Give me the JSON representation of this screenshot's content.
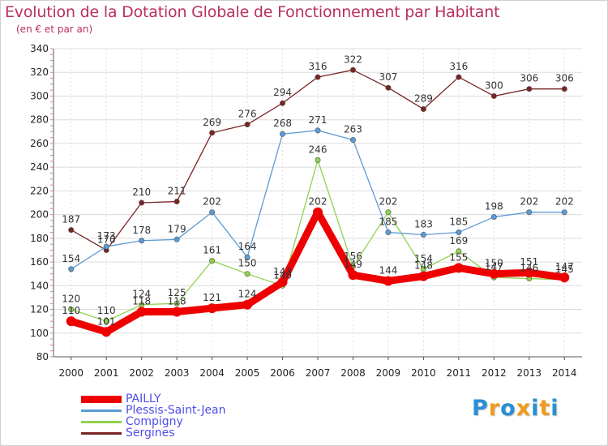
{
  "chart_data": {
    "type": "line",
    "title": "Evolution de la Dotation Globale de Fonctionnement par Habitant",
    "subtitle": "(en € et par an)",
    "xlabel": "",
    "ylabel": "",
    "categories": [
      "2000",
      "2001",
      "2002",
      "2003",
      "2004",
      "2005",
      "2006",
      "2007",
      "2008",
      "2009",
      "2010",
      "2011",
      "2012",
      "2013",
      "2014"
    ],
    "ylim": [
      80,
      340
    ],
    "yticks": [
      80,
      100,
      120,
      140,
      160,
      180,
      200,
      220,
      240,
      260,
      280,
      300,
      320,
      340
    ],
    "grid": true,
    "legend_position": "bottom-left",
    "series": [
      {
        "name": "PAILLY",
        "color": "#ee0000",
        "values": [
          110,
          101,
          118,
          118,
          121,
          124,
          143,
          202,
          149,
          144,
          148,
          155,
          150,
          151,
          147
        ]
      },
      {
        "name": "Plessis-Saint-Jean",
        "color": "#5b9ad5",
        "values": [
          154,
          173,
          178,
          179,
          202,
          164,
          268,
          271,
          263,
          185,
          183,
          185,
          198,
          202,
          202
        ]
      },
      {
        "name": "Compigny",
        "color": "#8fd14f",
        "values": [
          120,
          110,
          124,
          125,
          161,
          150,
          140,
          246,
          156,
          202,
          154,
          169,
          147,
          146,
          145
        ]
      },
      {
        "name": "Sergines",
        "color": "#7a2424",
        "values": [
          187,
          170,
          210,
          211,
          269,
          276,
          294,
          316,
          322,
          307,
          289,
          316,
          300,
          306,
          306
        ]
      }
    ]
  },
  "logo": {
    "letters": [
      "P",
      "r",
      "o",
      "x",
      "i",
      "t",
      "i"
    ],
    "colors": [
      "#2a8fd6",
      "#f29b1b",
      "#2a8fd6",
      "#f29b1b",
      "#2a8fd6",
      "#f29b1b",
      "#2a8fd6"
    ]
  }
}
